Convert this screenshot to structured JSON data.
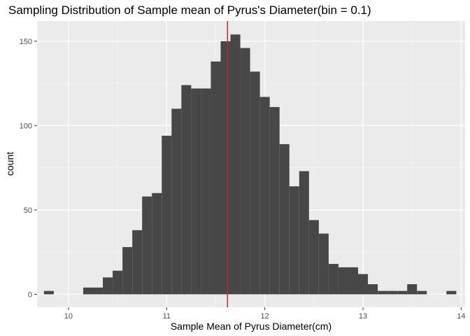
{
  "chart_data": {
    "type": "bar",
    "title": "Sampling Distribution of Sample mean of Pyrus's Diameter(bin = 0.1)",
    "xlabel": "Sample Mean of Pyrus Diameter(cm)",
    "ylabel": "count",
    "bin_width": 0.1,
    "xlim": [
      9.68,
      14.04
    ],
    "ylim": [
      -7.7,
      162
    ],
    "x_ticks": [
      10,
      11,
      12,
      13,
      14
    ],
    "y_ticks": [
      0,
      50,
      100,
      150
    ],
    "x_tick_labels": [
      "10",
      "11",
      "12",
      "13",
      "14"
    ],
    "y_tick_labels": [
      "0",
      "50",
      "100",
      "150"
    ],
    "grid": true,
    "bin_starts": [
      9.75,
      10.15,
      10.25,
      10.35,
      10.45,
      10.55,
      10.65,
      10.75,
      10.85,
      10.95,
      11.05,
      11.15,
      11.25,
      11.35,
      11.45,
      11.55,
      11.65,
      11.75,
      11.85,
      11.95,
      12.05,
      12.15,
      12.25,
      12.35,
      12.45,
      12.55,
      12.65,
      12.75,
      12.85,
      12.95,
      13.05,
      13.15,
      13.25,
      13.35,
      13.45,
      13.55,
      13.85
    ],
    "counts": [
      2,
      4,
      4,
      10,
      14,
      28,
      38,
      58,
      60,
      94,
      110,
      124,
      122,
      122,
      138,
      150,
      154,
      146,
      132,
      117,
      111,
      89,
      64,
      73,
      44,
      36,
      18,
      16,
      16,
      12,
      6,
      2,
      2,
      2,
      6,
      2,
      2
    ],
    "mean_line": {
      "x": 11.62,
      "color": "#e41a1c"
    },
    "colors": {
      "bar_fill": "#474747",
      "panel_background": "#ebebeb",
      "grid_major": "#ffffff",
      "grid_minor": "#f5f5f5"
    }
  }
}
